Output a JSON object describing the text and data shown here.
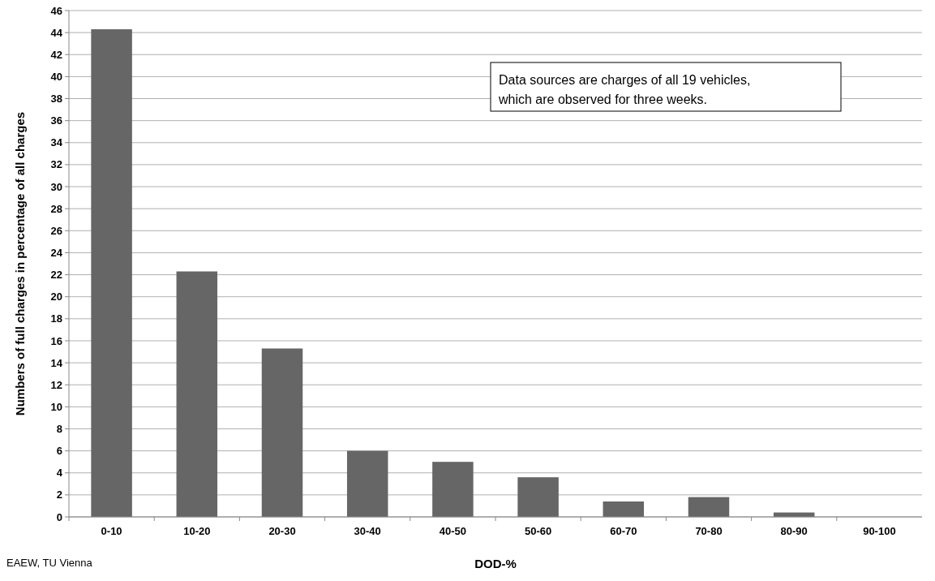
{
  "chart_data": {
    "type": "bar",
    "xlabel": "DOD-%",
    "ylabel": "Numbers of full charges in percentage of all charges",
    "categories": [
      "0-10",
      "10-20",
      "20-30",
      "30-40",
      "40-50",
      "50-60",
      "60-70",
      "70-80",
      "80-90",
      "90-100"
    ],
    "values": [
      44.3,
      22.3,
      15.3,
      6.0,
      5.0,
      3.6,
      1.4,
      1.8,
      0.4,
      0
    ],
    "color": "#666666",
    "ylim": [
      0,
      46
    ],
    "yticks": [
      0,
      2,
      4,
      6,
      8,
      10,
      12,
      14,
      16,
      18,
      20,
      22,
      24,
      26,
      28,
      30,
      32,
      34,
      36,
      38,
      40,
      42,
      44,
      46
    ],
    "grid": "y",
    "annotations": [
      "Data sources are charges of all 19 vehicles,\nwhich are observed for three weeks.",
      "EAEW, TU Vienna"
    ]
  }
}
